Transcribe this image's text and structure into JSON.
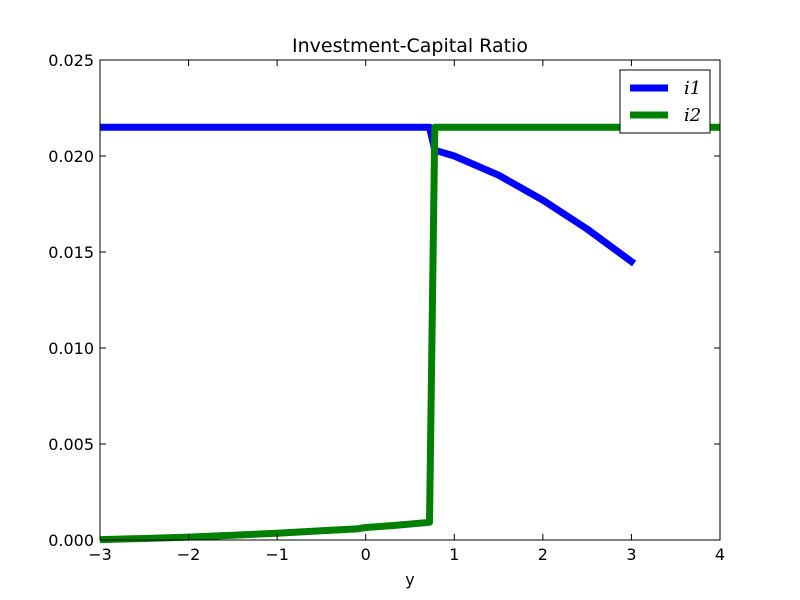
{
  "chart_data": {
    "type": "line",
    "title": "Investment-Capital Ratio",
    "xlabel": "y",
    "ylabel": "",
    "xlim": [
      -3,
      4
    ],
    "ylim": [
      0,
      0.025
    ],
    "xticks": [
      -3,
      -2,
      -1,
      0,
      1,
      2,
      3,
      4
    ],
    "xtick_labels": [
      "−3",
      "−2",
      "−1",
      "0",
      "1",
      "2",
      "3",
      "4"
    ],
    "yticks": [
      0,
      0.005,
      0.01,
      0.015,
      0.02,
      0.025
    ],
    "ytick_labels": [
      "0.000",
      "0.005",
      "0.010",
      "0.015",
      "0.020",
      "0.025"
    ],
    "grid": false,
    "legend_position": "top-right",
    "series": [
      {
        "name": "i1",
        "color": "#0000ff",
        "x": [
          -3.0,
          -2.0,
          -1.0,
          0.0,
          0.5,
          0.72,
          0.78,
          1.0,
          1.5,
          2.0,
          2.5,
          3.03
        ],
        "y": [
          0.0215,
          0.0215,
          0.0215,
          0.0215,
          0.0215,
          0.0215,
          0.0203,
          0.02,
          0.019,
          0.0177,
          0.0162,
          0.0144
        ]
      },
      {
        "name": "i2",
        "color": "#008000",
        "x": [
          -3.0,
          -2.5,
          -2.0,
          -1.5,
          -1.0,
          -0.5,
          -0.1,
          0.0,
          0.3,
          0.72,
          0.78,
          1.0,
          2.0,
          3.0,
          4.0
        ],
        "y": [
          2e-05,
          8e-05,
          0.00015,
          0.00025,
          0.00035,
          0.00048,
          0.00058,
          0.00065,
          0.00075,
          0.00092,
          0.0215,
          0.0215,
          0.0215,
          0.0215,
          0.0215
        ]
      }
    ]
  }
}
